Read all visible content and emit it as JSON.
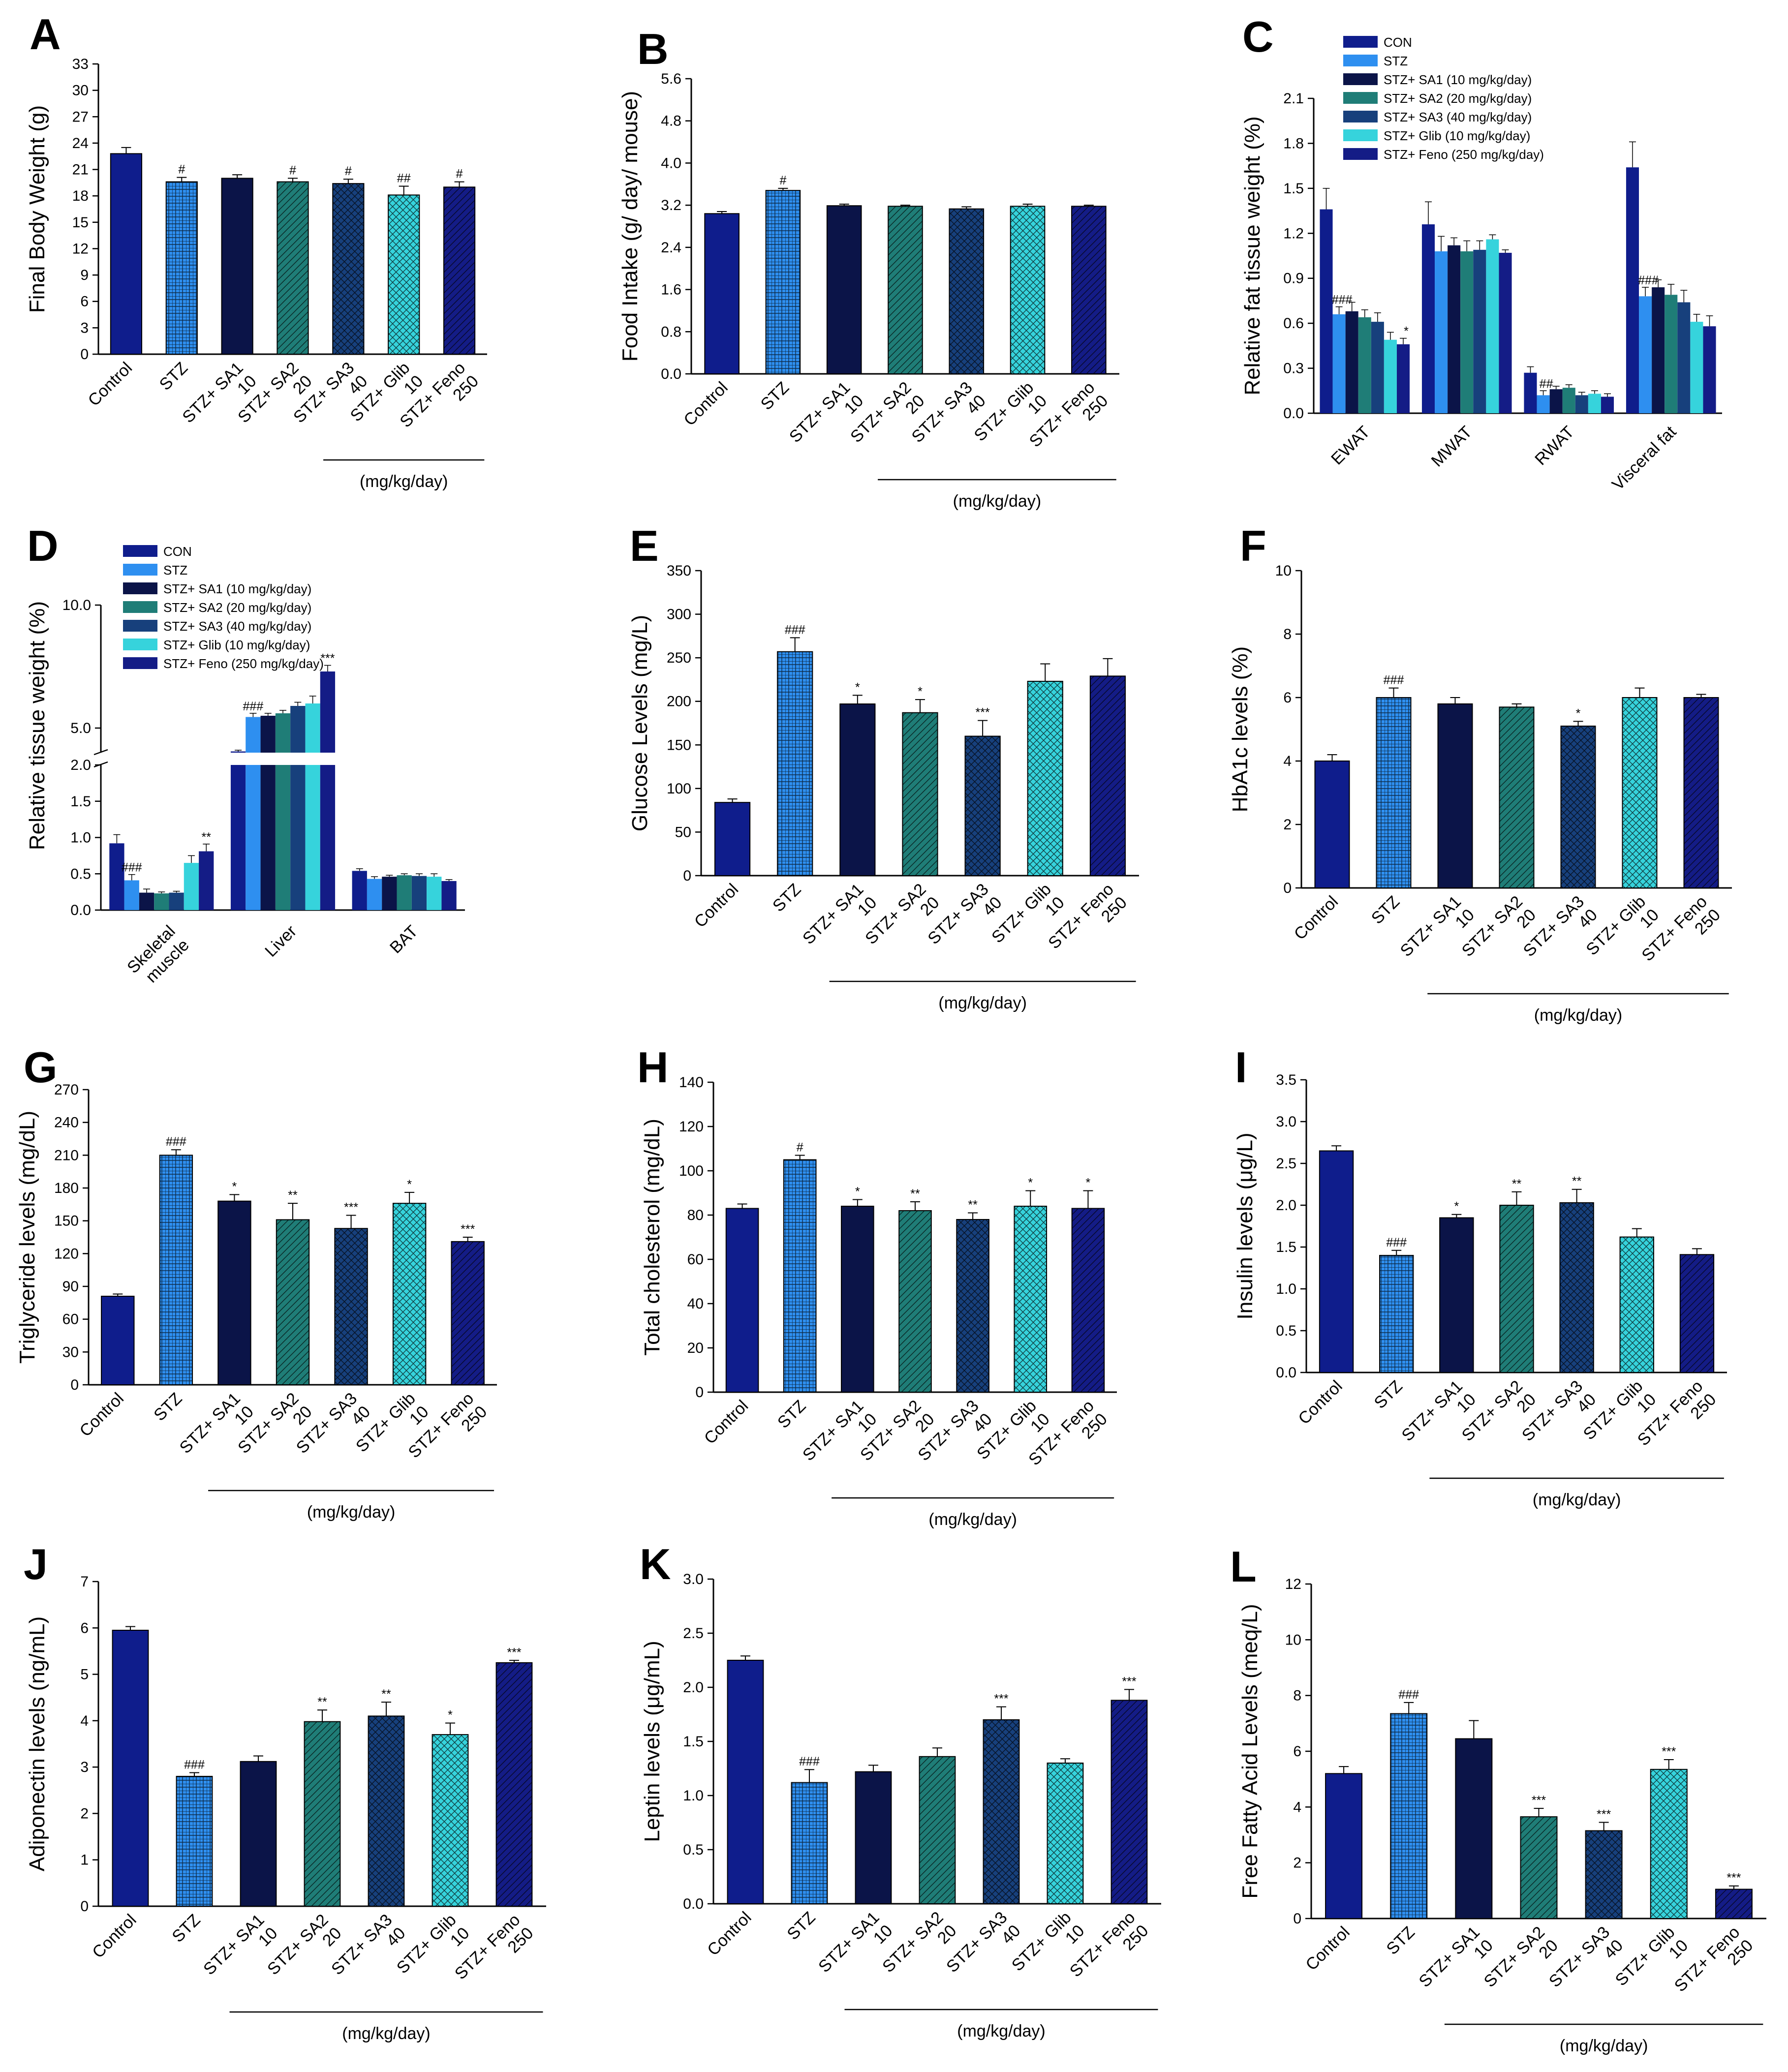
{
  "figure": {
    "colors": {
      "CON": "#0f1d8c",
      "STZ": "#2e8ff0",
      "SA1": "#0b1448",
      "SA2": "#1f7d77",
      "SA3": "#17407c",
      "Glib": "#36d3dc",
      "Feno": "#141c86",
      "err": "#000000"
    },
    "patterns": {
      "CON": "none",
      "STZ": "grid",
      "SA1": "none",
      "SA2": "diag",
      "SA3": "cross",
      "Glib": "cross",
      "Feno": "diag2"
    },
    "icons": {
      "bar-group": "grouped-bars",
      "legend-swatch": "filled-square"
    }
  },
  "chart_data": [
    {
      "id": "A",
      "panel_label": "A",
      "type": "bar",
      "ylabel": "Final Body Weight (g)",
      "ylim": [
        0,
        33
      ],
      "yticks": [
        "0",
        "3",
        "6",
        "9",
        "12",
        "15",
        "18",
        "21",
        "24",
        "27",
        "30",
        "33"
      ],
      "categories": [
        [
          "Control"
        ],
        [
          "STZ"
        ],
        [
          "STZ+ SA1",
          "10"
        ],
        [
          "STZ+ SA2",
          "20"
        ],
        [
          "STZ+ SA3",
          "40"
        ],
        [
          "STZ+ Glib",
          "10"
        ],
        [
          "STZ+ Feno",
          "250"
        ]
      ],
      "groups": [
        "CON",
        "STZ",
        "SA1",
        "SA2",
        "SA3",
        "Glib",
        "Feno"
      ],
      "values": [
        22.8,
        19.6,
        20.0,
        19.6,
        19.4,
        18.1,
        19.0
      ],
      "errors": [
        0.7,
        0.5,
        0.4,
        0.4,
        0.5,
        1.0,
        0.6
      ],
      "annotations": [
        "",
        "#",
        "",
        "#",
        "#",
        "##",
        "#"
      ],
      "unit_label": "(mg/kg/day)"
    },
    {
      "id": "B",
      "panel_label": "B",
      "type": "bar",
      "ylabel": "Food Intake (g/ day/ mouse)",
      "ylim": [
        0,
        5.6
      ],
      "yticks": [
        "0.0",
        "0.8",
        "1.6",
        "2.4",
        "3.2",
        "4.0",
        "4.8",
        "5.6"
      ],
      "categories": [
        [
          "Control"
        ],
        [
          "STZ"
        ],
        [
          "STZ+ SA1",
          "10"
        ],
        [
          "STZ+ SA2",
          "20"
        ],
        [
          "STZ+ SA3",
          "40"
        ],
        [
          "STZ+ Glib",
          "10"
        ],
        [
          "STZ+ Feno",
          "250"
        ]
      ],
      "groups": [
        "CON",
        "STZ",
        "SA1",
        "SA2",
        "SA3",
        "Glib",
        "Feno"
      ],
      "values": [
        3.04,
        3.48,
        3.19,
        3.18,
        3.13,
        3.18,
        3.18
      ],
      "errors": [
        0.04,
        0.04,
        0.03,
        0.02,
        0.04,
        0.04,
        0.02
      ],
      "annotations": [
        "",
        "#",
        "",
        "",
        "",
        "",
        ""
      ],
      "unit_label": "(mg/kg/day)"
    },
    {
      "id": "C",
      "panel_label": "C",
      "type": "grouped-bar",
      "ylabel": "Relative fat tissue weight (%)",
      "ylim": [
        0,
        2.1
      ],
      "yticks": [
        "0.0",
        "0.3",
        "0.6",
        "0.9",
        "1.2",
        "1.5",
        "1.8",
        "2.1"
      ],
      "categories": [
        "EWAT",
        "MWAT",
        "RWAT",
        "Visceral fat"
      ],
      "legend": [
        "CON",
        "STZ",
        "STZ+ SA1 (10 mg/kg/day)",
        "STZ+ SA2 (20 mg/kg/day)",
        "STZ+ SA3 (40 mg/kg/day)",
        "STZ+ Glib (10 mg/kg/day)",
        "STZ+ Feno (250 mg/kg/day)"
      ],
      "series": [
        {
          "name": "CON",
          "values": [
            1.36,
            1.26,
            0.27,
            1.64
          ],
          "errors": [
            0.14,
            0.15,
            0.04,
            0.17
          ]
        },
        {
          "name": "STZ",
          "values": [
            0.66,
            1.08,
            0.12,
            0.78
          ],
          "errors": [
            0.05,
            0.1,
            0.03,
            0.06
          ]
        },
        {
          "name": "SA1",
          "values": [
            0.68,
            1.12,
            0.16,
            0.84
          ],
          "errors": [
            0.06,
            0.05,
            0.02,
            0.05
          ]
        },
        {
          "name": "SA2",
          "values": [
            0.64,
            1.08,
            0.17,
            0.79
          ],
          "errors": [
            0.05,
            0.07,
            0.02,
            0.07
          ]
        },
        {
          "name": "SA3",
          "values": [
            0.61,
            1.09,
            0.12,
            0.74
          ],
          "errors": [
            0.06,
            0.06,
            0.02,
            0.08
          ]
        },
        {
          "name": "Glib",
          "values": [
            0.49,
            1.16,
            0.13,
            0.61
          ],
          "errors": [
            0.05,
            0.03,
            0.02,
            0.05
          ]
        },
        {
          "name": "Feno",
          "values": [
            0.46,
            1.07,
            0.11,
            0.58
          ],
          "errors": [
            0.04,
            0.02,
            0.02,
            0.07
          ]
        }
      ],
      "bar_annotations": [
        {
          "series": 1,
          "category": 0,
          "text": "###"
        },
        {
          "series": 6,
          "category": 0,
          "text": "*"
        },
        {
          "series": 1,
          "category": 2,
          "text": "##"
        },
        {
          "series": 1,
          "category": 3,
          "text": "###"
        }
      ]
    },
    {
      "id": "D",
      "panel_label": "D",
      "type": "grouped-bar-broken",
      "ylabel": "Relative tissue weight (%)",
      "lower_ylim": [
        0,
        2.0
      ],
      "lower_yticks": [
        "0.0",
        "0.5",
        "1.0",
        "1.5",
        "2.0"
      ],
      "upper_ylim": [
        4.0,
        10.0
      ],
      "upper_yticks": [
        "5.0",
        "10.0"
      ],
      "categories": [
        [
          "Skeletal",
          "muscle"
        ],
        [
          "Liver"
        ],
        [
          "BAT"
        ]
      ],
      "legend": [
        "CON",
        "STZ",
        "STZ+ SA1 (10 mg/kg/day)",
        "STZ+ SA2 (20 mg/kg/day)",
        "STZ+ SA3 (40 mg/kg/day)",
        "STZ+ Glib (10 mg/kg/day)",
        "STZ+ Feno (250 mg/kg/day)"
      ],
      "series": [
        {
          "name": "CON",
          "values": [
            0.92,
            4.05,
            0.54
          ],
          "errors": [
            0.12,
            0.05,
            0.03
          ]
        },
        {
          "name": "STZ",
          "values": [
            0.41,
            5.45,
            0.43
          ],
          "errors": [
            0.08,
            0.15,
            0.03
          ]
        },
        {
          "name": "SA1",
          "values": [
            0.24,
            5.5,
            0.46
          ],
          "errors": [
            0.05,
            0.1,
            0.02
          ]
        },
        {
          "name": "SA2",
          "values": [
            0.23,
            5.6,
            0.48
          ],
          "errors": [
            0.02,
            0.12,
            0.02
          ]
        },
        {
          "name": "SA3",
          "values": [
            0.24,
            5.9,
            0.47
          ],
          "errors": [
            0.02,
            0.15,
            0.03
          ]
        },
        {
          "name": "Glib",
          "values": [
            0.65,
            6.0,
            0.46
          ],
          "errors": [
            0.1,
            0.3,
            0.04
          ]
        },
        {
          "name": "Feno",
          "values": [
            0.81,
            7.3,
            0.4
          ],
          "errors": [
            0.1,
            0.25,
            0.02
          ]
        }
      ],
      "bar_annotations": [
        {
          "series": 1,
          "category": 0,
          "text": "###"
        },
        {
          "series": 6,
          "category": 0,
          "text": "**"
        },
        {
          "series": 1,
          "category": 1,
          "text": "###"
        },
        {
          "series": 6,
          "category": 1,
          "text": "***"
        }
      ]
    },
    {
      "id": "E",
      "panel_label": "E",
      "type": "bar",
      "ylabel": "Glucose  Levels (mg/L)",
      "ylim": [
        0,
        350
      ],
      "yticks": [
        "0",
        "50",
        "100",
        "150",
        "200",
        "250",
        "300",
        "350"
      ],
      "categories": [
        [
          "Control"
        ],
        [
          "STZ"
        ],
        [
          "STZ+ SA1",
          "10"
        ],
        [
          "STZ+ SA2",
          "20"
        ],
        [
          "STZ+ SA3",
          "40"
        ],
        [
          "STZ+ Glib",
          "10"
        ],
        [
          "STZ+ Feno",
          "250"
        ]
      ],
      "groups": [
        "CON",
        "STZ",
        "SA1",
        "SA2",
        "SA3",
        "Glib",
        "Feno"
      ],
      "values": [
        84,
        257,
        197,
        187,
        160,
        223,
        229
      ],
      "errors": [
        4,
        16,
        10,
        15,
        18,
        20,
        20
      ],
      "annotations": [
        "",
        "###",
        "*",
        "*",
        "***",
        "",
        ""
      ],
      "unit_label": "(mg/kg/day)"
    },
    {
      "id": "F",
      "panel_label": "F",
      "type": "bar",
      "ylabel": "HbA1c levels (%)",
      "ylim": [
        0,
        10
      ],
      "yticks": [
        "0",
        "2",
        "4",
        "6",
        "8",
        "10"
      ],
      "categories": [
        [
          "Control"
        ],
        [
          "STZ"
        ],
        [
          "STZ+ SA1",
          "10"
        ],
        [
          "STZ+ SA2",
          "20"
        ],
        [
          "STZ+ SA3",
          "40"
        ],
        [
          "STZ+ Glib",
          "10"
        ],
        [
          "STZ+ Feno",
          "250"
        ]
      ],
      "groups": [
        "CON",
        "STZ",
        "SA1",
        "SA2",
        "SA3",
        "Glib",
        "Feno"
      ],
      "values": [
        4.0,
        6.0,
        5.8,
        5.7,
        5.1,
        6.0,
        6.0
      ],
      "errors": [
        0.2,
        0.3,
        0.2,
        0.1,
        0.15,
        0.3,
        0.1
      ],
      "annotations": [
        "",
        "###",
        "",
        "",
        "*",
        "",
        ""
      ],
      "unit_label": "(mg/kg/day)"
    },
    {
      "id": "G",
      "panel_label": "G",
      "type": "bar",
      "ylabel": "Triglyceride levels (mg/dL)",
      "ylim": [
        0,
        270
      ],
      "yticks": [
        "0",
        "30",
        "60",
        "90",
        "120",
        "150",
        "180",
        "210",
        "240",
        "270"
      ],
      "categories": [
        [
          "Control"
        ],
        [
          "STZ"
        ],
        [
          "STZ+ SA1",
          "10"
        ],
        [
          "STZ+ SA2",
          "20"
        ],
        [
          "STZ+ SA3",
          "40"
        ],
        [
          "STZ+ Glib",
          "10"
        ],
        [
          "STZ+ Feno",
          "250"
        ]
      ],
      "groups": [
        "CON",
        "STZ",
        "SA1",
        "SA2",
        "SA3",
        "Glib",
        "Feno"
      ],
      "values": [
        81,
        210,
        168,
        151,
        143,
        166,
        131
      ],
      "errors": [
        2,
        5,
        6,
        15,
        12,
        10,
        4
      ],
      "annotations": [
        "",
        "###",
        "*",
        "**",
        "***",
        "*",
        "***"
      ],
      "unit_label": "(mg/kg/day)"
    },
    {
      "id": "H",
      "panel_label": "H",
      "type": "bar",
      "ylabel": "Total cholesterol (mg/dL)",
      "ylim": [
        0,
        140
      ],
      "yticks": [
        "0",
        "20",
        "40",
        "60",
        "80",
        "100",
        "120",
        "140"
      ],
      "categories": [
        [
          "Control"
        ],
        [
          "STZ"
        ],
        [
          "STZ+ SA1",
          "10"
        ],
        [
          "STZ+ SA2",
          "20"
        ],
        [
          "STZ+ SA3",
          "40"
        ],
        [
          "STZ+ Glib",
          "10"
        ],
        [
          "STZ+ Feno",
          "250"
        ]
      ],
      "groups": [
        "CON",
        "STZ",
        "SA1",
        "SA2",
        "SA3",
        "Glib",
        "Feno"
      ],
      "values": [
        83,
        105,
        84,
        82,
        78,
        84,
        83
      ],
      "errors": [
        2,
        2,
        3,
        4,
        3,
        7,
        8
      ],
      "annotations": [
        "",
        "#",
        "*",
        "**",
        "**",
        "*",
        "*"
      ],
      "unit_label": "(mg/kg/day)"
    },
    {
      "id": "I",
      "panel_label": "I",
      "type": "bar",
      "ylabel": "Insulin levels (μg/L)",
      "ylim": [
        0,
        3.5
      ],
      "yticks": [
        "0.0",
        "0.5",
        "1.0",
        "1.5",
        "2.0",
        "2.5",
        "3.0",
        "3.5"
      ],
      "categories": [
        [
          "Control"
        ],
        [
          "STZ"
        ],
        [
          "STZ+ SA1",
          "10"
        ],
        [
          "STZ+ SA2",
          "20"
        ],
        [
          "STZ+ SA3",
          "40"
        ],
        [
          "STZ+ Glib",
          "10"
        ],
        [
          "STZ+ Feno",
          "250"
        ]
      ],
      "groups": [
        "CON",
        "STZ",
        "SA1",
        "SA2",
        "SA3",
        "Glib",
        "Feno"
      ],
      "values": [
        2.65,
        1.4,
        1.85,
        2.0,
        2.03,
        1.62,
        1.41
      ],
      "errors": [
        0.06,
        0.06,
        0.04,
        0.16,
        0.16,
        0.1,
        0.07
      ],
      "annotations": [
        "",
        "###",
        "*",
        "**",
        "**",
        "",
        ""
      ],
      "unit_label": "(mg/kg/day)"
    },
    {
      "id": "J",
      "panel_label": "J",
      "type": "bar",
      "ylabel": "Adiponectin levels (ng/mL)",
      "ylim": [
        0,
        7
      ],
      "yticks": [
        "0",
        "1",
        "2",
        "3",
        "4",
        "5",
        "6",
        "7"
      ],
      "categories": [
        [
          "Control"
        ],
        [
          "STZ"
        ],
        [
          "STZ+ SA1",
          "10"
        ],
        [
          "STZ+ SA2",
          "20"
        ],
        [
          "STZ+ SA3",
          "40"
        ],
        [
          "STZ+ Glib",
          "10"
        ],
        [
          "STZ+ Feno",
          "250"
        ]
      ],
      "groups": [
        "CON",
        "STZ",
        "SA1",
        "SA2",
        "SA3",
        "Glib",
        "Feno"
      ],
      "values": [
        5.95,
        2.8,
        3.12,
        3.98,
        4.1,
        3.7,
        5.25
      ],
      "errors": [
        0.08,
        0.08,
        0.12,
        0.25,
        0.3,
        0.25,
        0.05
      ],
      "annotations": [
        "",
        "###",
        "",
        "**",
        "**",
        "*",
        "***"
      ],
      "unit_label": "(mg/kg/day)"
    },
    {
      "id": "K",
      "panel_label": "K",
      "type": "bar",
      "ylabel": "Leptin levels (μg/mL)",
      "ylim": [
        0,
        3.0
      ],
      "yticks": [
        "0.0",
        "0.5",
        "1.0",
        "1.5",
        "2.0",
        "2.5",
        "3.0"
      ],
      "categories": [
        [
          "Control"
        ],
        [
          "STZ"
        ],
        [
          "STZ+ SA1",
          "10"
        ],
        [
          "STZ+ SA2",
          "20"
        ],
        [
          "STZ+ SA3",
          "40"
        ],
        [
          "STZ+ Glib",
          "10"
        ],
        [
          "STZ+ Feno",
          "250"
        ]
      ],
      "groups": [
        "CON",
        "STZ",
        "SA1",
        "SA2",
        "SA3",
        "Glib",
        "Feno"
      ],
      "values": [
        2.25,
        1.12,
        1.22,
        1.36,
        1.7,
        1.3,
        1.88
      ],
      "errors": [
        0.04,
        0.12,
        0.06,
        0.08,
        0.12,
        0.04,
        0.1
      ],
      "annotations": [
        "",
        "###",
        "",
        "",
        "***",
        "",
        "***"
      ],
      "unit_label": "(mg/kg/day)"
    },
    {
      "id": "L",
      "panel_label": "L",
      "type": "bar",
      "ylabel": "Free Fatty Acid Levels (meq/L)",
      "ylim": [
        0,
        12
      ],
      "yticks": [
        "0",
        "2",
        "4",
        "6",
        "8",
        "10",
        "12"
      ],
      "categories": [
        [
          "Control"
        ],
        [
          "STZ"
        ],
        [
          "STZ+ SA1",
          "10"
        ],
        [
          "STZ+ SA2",
          "20"
        ],
        [
          "STZ+ SA3",
          "40"
        ],
        [
          "STZ+ Glib",
          "10"
        ],
        [
          "STZ+ Feno",
          "250"
        ]
      ],
      "groups": [
        "CON",
        "STZ",
        "SA1",
        "SA2",
        "SA3",
        "Glib",
        "Feno"
      ],
      "values": [
        5.2,
        7.35,
        6.45,
        3.65,
        3.15,
        5.35,
        1.05
      ],
      "errors": [
        0.25,
        0.4,
        0.65,
        0.3,
        0.3,
        0.35,
        0.12
      ],
      "annotations": [
        "",
        "###",
        "",
        "***",
        "***",
        "***",
        "***"
      ],
      "unit_label": "(mg/kg/day)"
    }
  ]
}
